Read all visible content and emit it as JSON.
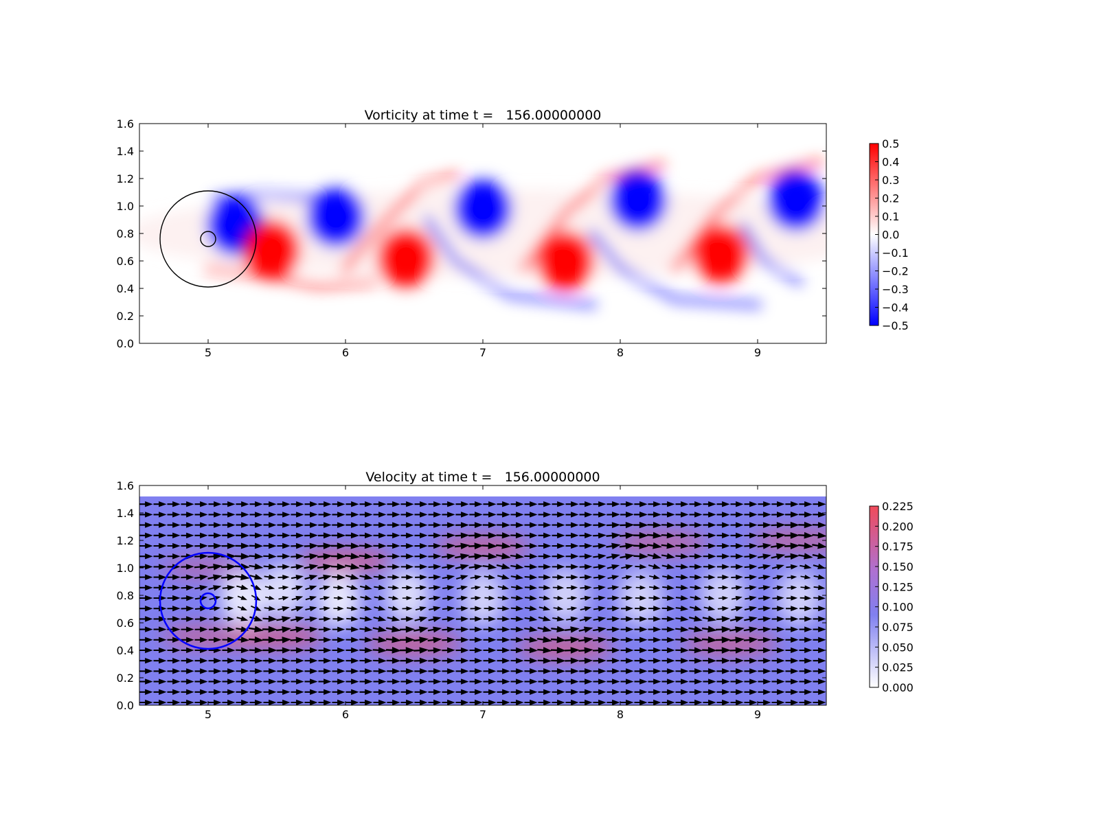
{
  "chart_data": [
    {
      "type": "heatmap",
      "title": "Vorticity at time t =   156.00000000",
      "xlabel": "",
      "ylabel": "",
      "xlim": [
        4.5,
        9.5
      ],
      "ylim": [
        0.0,
        1.6
      ],
      "xticks": [
        "5",
        "6",
        "7",
        "8",
        "9"
      ],
      "yticks": [
        "0.0",
        "0.2",
        "0.4",
        "0.6",
        "0.8",
        "1.0",
        "1.2",
        "1.4",
        "1.6"
      ],
      "colormap": "bwr",
      "colors": {
        "negative": "#0000ff",
        "zero": "#ffffff",
        "positive": "#ff0000"
      },
      "vmin": -0.5,
      "vmax": 0.5,
      "colorbar_ticks": [
        "0.5",
        "0.4",
        "0.3",
        "0.2",
        "0.1",
        "0.0",
        "−0.1",
        "−0.2",
        "−0.3",
        "−0.4",
        "−0.5"
      ],
      "colorbar_position": "right",
      "grid": false,
      "vortices": [
        {
          "x": 5.2,
          "y": 0.86,
          "sign": "negative",
          "strength": 0.5
        },
        {
          "x": 5.46,
          "y": 0.68,
          "sign": "positive",
          "strength": 0.5
        },
        {
          "x": 5.93,
          "y": 0.92,
          "sign": "negative",
          "strength": 0.5
        },
        {
          "x": 6.44,
          "y": 0.62,
          "sign": "positive",
          "strength": 0.5
        },
        {
          "x": 7.0,
          "y": 0.98,
          "sign": "negative",
          "strength": 0.5
        },
        {
          "x": 7.6,
          "y": 0.6,
          "sign": "positive",
          "strength": 0.5
        },
        {
          "x": 8.13,
          "y": 1.04,
          "sign": "negative",
          "strength": 0.5
        },
        {
          "x": 8.73,
          "y": 0.65,
          "sign": "positive",
          "strength": 0.5
        },
        {
          "x": 9.28,
          "y": 1.04,
          "sign": "negative",
          "strength": 0.5
        }
      ],
      "circles": [
        {
          "cx": 5.0,
          "cy": 0.76,
          "r": 0.35,
          "color": "#000000"
        },
        {
          "cx": 5.0,
          "cy": 0.76,
          "r": 0.055,
          "color": "#000000"
        }
      ]
    },
    {
      "type": "heatmap",
      "title": "Velocity at time t =   156.00000000",
      "xlabel": "",
      "ylabel": "",
      "xlim": [
        4.5,
        9.5
      ],
      "ylim": [
        0.0,
        1.6
      ],
      "xticks": [
        "5",
        "6",
        "7",
        "8",
        "9"
      ],
      "yticks": [
        "0.0",
        "0.2",
        "0.4",
        "0.6",
        "0.8",
        "1.0",
        "1.2",
        "1.4",
        "1.6"
      ],
      "colormap": "white-blue-red",
      "colors": {
        "low": "#ffffff",
        "mid": "#8080f0",
        "high": "#f05060",
        "arrows": "#000000"
      },
      "vmin": 0.0,
      "vmax": 0.23,
      "field_ylim": [
        0.0,
        1.52
      ],
      "background_speed": 0.1,
      "colorbar_ticks": [
        "0.225",
        "0.200",
        "0.175",
        "0.150",
        "0.125",
        "0.100",
        "0.075",
        "0.050",
        "0.025",
        "0.000"
      ],
      "colorbar_position": "right",
      "grid": false,
      "quiver": true,
      "slow_regions": [
        {
          "x": 5.25,
          "y": 0.78,
          "depth": 0.09
        },
        {
          "x": 5.55,
          "y": 0.84,
          "depth": 0.08
        },
        {
          "x": 5.95,
          "y": 0.77,
          "depth": 0.09
        },
        {
          "x": 6.45,
          "y": 0.8,
          "depth": 0.08
        },
        {
          "x": 7.0,
          "y": 0.78,
          "depth": 0.07
        },
        {
          "x": 7.6,
          "y": 0.8,
          "depth": 0.07
        },
        {
          "x": 8.15,
          "y": 0.78,
          "depth": 0.07
        },
        {
          "x": 8.75,
          "y": 0.8,
          "depth": 0.07
        },
        {
          "x": 9.3,
          "y": 0.78,
          "depth": 0.07
        }
      ],
      "fast_regions": [
        {
          "x": 5.0,
          "y": 0.5,
          "boost": 0.08
        },
        {
          "x": 5.0,
          "y": 1.0,
          "boost": 0.06
        },
        {
          "x": 5.5,
          "y": 0.5,
          "boost": 0.1
        },
        {
          "x": 6.0,
          "y": 1.05,
          "boost": 0.1
        },
        {
          "x": 6.5,
          "y": 0.45,
          "boost": 0.1
        },
        {
          "x": 7.0,
          "y": 1.15,
          "boost": 0.09
        },
        {
          "x": 7.6,
          "y": 0.42,
          "boost": 0.1
        },
        {
          "x": 8.3,
          "y": 1.18,
          "boost": 0.08
        },
        {
          "x": 8.8,
          "y": 0.45,
          "boost": 0.09
        },
        {
          "x": 9.3,
          "y": 1.2,
          "boost": 0.08
        }
      ],
      "circles": [
        {
          "cx": 5.0,
          "cy": 0.76,
          "r": 0.35,
          "color": "#0000ff"
        },
        {
          "cx": 5.0,
          "cy": 0.76,
          "r": 0.055,
          "color": "#0000ff"
        }
      ]
    }
  ]
}
